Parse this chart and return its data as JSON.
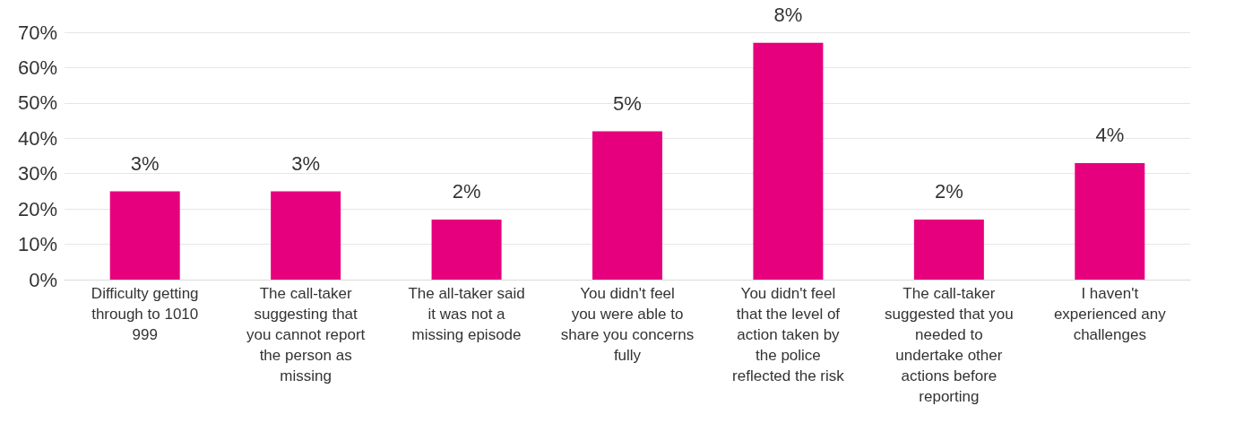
{
  "chart_data": {
    "type": "bar",
    "categories": [
      "Difficulty getting through to 1010 999",
      "The call-taker suggesting that you cannot report the person as missing",
      "The all-taker said it was not a missing episode",
      "You didn't feel you were able to share you concerns fully",
      "You didn't feel that the level of action taken by the police reflected the risk",
      "The call-taker suggested that you needed to undertake other actions before reporting",
      "I haven't experienced any challenges"
    ],
    "values": [
      25,
      25,
      17,
      42,
      67,
      17,
      33
    ],
    "annotations": [
      {
        "text": "3%",
        "x": "Difficulty getting through to 1010 999",
        "y": 25
      },
      {
        "text": "3%",
        "x": "The call-taker suggesting that you cannot report the person as missing",
        "y": 25
      },
      {
        "text": "2%",
        "x": "The all-taker said it was not a missing episode",
        "y": 17
      },
      {
        "text": "5%",
        "x": "You didn't feel you were able to share you concerns fully",
        "y": 42
      },
      {
        "text": "8%",
        "x": "You didn't feel that the level of action taken by the police reflected the risk",
        "y": 67
      },
      {
        "text": "2%",
        "x": "The call-taker suggested that you needed to undertake other actions before reporting",
        "y": 17
      },
      {
        "text": "4%",
        "x": "I haven't experienced any challenges",
        "y": 33
      }
    ],
    "color": "#e6007e",
    "ylim": [
      0,
      70
    ],
    "yticks": [
      {
        "value": 0,
        "label": "0%"
      },
      {
        "value": 10,
        "label": "10%"
      },
      {
        "value": 20,
        "label": "20%"
      },
      {
        "value": 30,
        "label": "30%"
      },
      {
        "value": 40,
        "label": "40%"
      },
      {
        "value": 50,
        "label": "50%"
      },
      {
        "value": 60,
        "label": "60%"
      },
      {
        "value": 70,
        "label": "70%"
      }
    ],
    "grid": "y"
  }
}
